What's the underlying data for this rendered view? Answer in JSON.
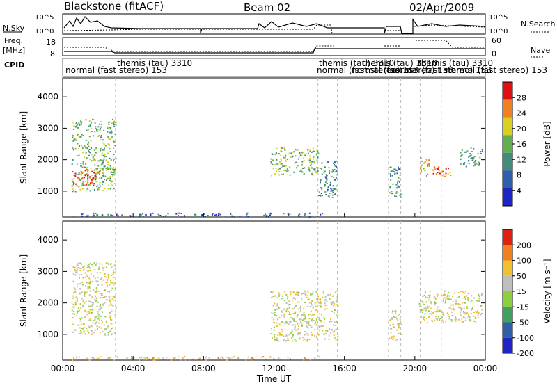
{
  "header": {
    "station": "Blackstone (fitACF)",
    "beam": "Beam 02",
    "date": "02/Apr/2009"
  },
  "status_panel": {
    "nsky_label": "N.Sky",
    "nsky_ticks": [
      "10^5",
      "10^0"
    ],
    "nsearch_label": "N.Search",
    "nsearch_ticks": [
      "10^5",
      "10^0"
    ],
    "freq_label_1": "Freq.",
    "freq_label_2": "[MHz]",
    "freq_ticks": [
      "18",
      "8"
    ],
    "nave_label": "Nave",
    "nave_ticks": [
      "60",
      "0"
    ],
    "cpid_label": "CPID",
    "cpid_entries": [
      {
        "text": "normal (fast stereo) 153"
      },
      {
        "text": "themis (tau) 3310"
      },
      {
        "text": "normal (fast stereo) 153"
      },
      {
        "text": "themis (tau) 3310"
      },
      {
        "text": "normal (fast stereo) 153"
      },
      {
        "text": "themis (tau) 3310"
      },
      {
        "text": "normal (fast stereo) 153"
      },
      {
        "text": "themis (tau) 3310"
      },
      {
        "text": "normal (fast stereo) 153"
      }
    ]
  },
  "chart_data": [
    {
      "type": "heatmap",
      "title": "",
      "ylabel": "Slant Range [km]",
      "ylim": [
        180,
        4600
      ],
      "yticks": [
        "1000",
        "2000",
        "3000",
        "4000"
      ],
      "xlim_hours": [
        0,
        24
      ],
      "colorbar_label": "Power [dB]",
      "colorbar_ticks": [
        "4",
        "8",
        "12",
        "16",
        "20",
        "24",
        "28"
      ],
      "colorbar_range": [
        0,
        32
      ],
      "colors": [
        "#1e24c8",
        "#2f5fa8",
        "#3f8c7a",
        "#5fb050",
        "#d8d020",
        "#f08020",
        "#e01010"
      ],
      "regions": [
        {
          "t": [
            0.5,
            3.0
          ],
          "r": [
            1000,
            3300
          ],
          "level": 3
        },
        {
          "t": [
            0.5,
            2.0
          ],
          "r": [
            1200,
            1700
          ],
          "level": 6
        },
        {
          "t": [
            11.8,
            14.5
          ],
          "r": [
            1500,
            2400
          ],
          "level": 3
        },
        {
          "t": [
            14.5,
            15.6
          ],
          "r": [
            800,
            2000
          ],
          "level": 2
        },
        {
          "t": [
            18.5,
            19.2
          ],
          "r": [
            800,
            1800
          ],
          "level": 2
        },
        {
          "t": [
            20.2,
            20.8
          ],
          "r": [
            1500,
            2100
          ],
          "level": 4
        },
        {
          "t": [
            21.0,
            22.0
          ],
          "r": [
            1400,
            1800
          ],
          "level": 5
        },
        {
          "t": [
            22.5,
            23.8
          ],
          "r": [
            1800,
            2400
          ],
          "level": 2
        },
        {
          "t": [
            0.5,
            15.0
          ],
          "r": [
            200,
            320
          ],
          "level": 1
        }
      ]
    },
    {
      "type": "heatmap",
      "title": "",
      "ylabel": "Slant Range [km]",
      "ylim": [
        180,
        4600
      ],
      "yticks": [
        "1000",
        "2000",
        "3000",
        "4000"
      ],
      "xlim_hours": [
        0,
        24
      ],
      "xlabel": "Time UT",
      "xticks": [
        "00:00",
        "04:00",
        "08:00",
        "12:00",
        "16:00",
        "20:00",
        "00:00"
      ],
      "colorbar_label": "Velocity [m s⁻¹]",
      "colorbar_ticks": [
        "200",
        "100",
        "50",
        "15",
        "-15",
        "-50",
        "-100",
        "-200"
      ],
      "colorbar_range": [
        -250,
        250
      ],
      "colors": [
        "#1e24c8",
        "#2f5fa8",
        "#3fa060",
        "#8cd040",
        "#bebebe",
        "#f0c030",
        "#f08020",
        "#e02010"
      ],
      "regions": [
        {
          "t": [
            0.5,
            3.0
          ],
          "r": [
            1000,
            3300
          ],
          "level": 4
        },
        {
          "t": [
            11.8,
            15.6
          ],
          "r": [
            800,
            2400
          ],
          "level": 4
        },
        {
          "t": [
            18.5,
            19.2
          ],
          "r": [
            800,
            1800
          ],
          "level": 4
        },
        {
          "t": [
            20.2,
            23.8
          ],
          "r": [
            1400,
            2400
          ],
          "level": 4
        },
        {
          "t": [
            0.5,
            15.0
          ],
          "r": [
            200,
            320
          ],
          "level": 5
        }
      ]
    }
  ]
}
